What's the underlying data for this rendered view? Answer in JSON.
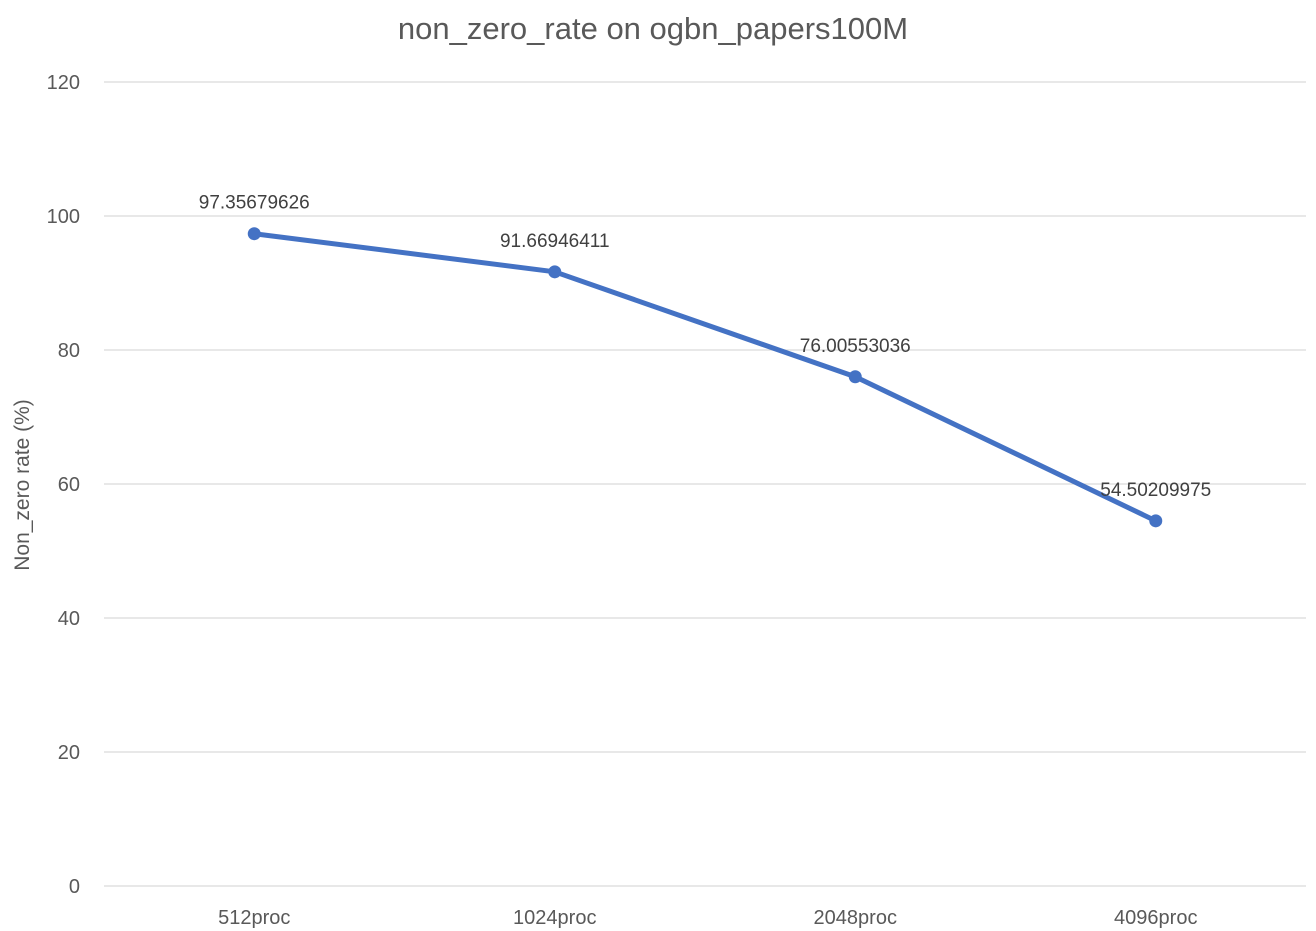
{
  "chart_data": {
    "type": "line",
    "title": "non_zero_rate on ogbn_papers100M",
    "xlabel": "",
    "ylabel": "Non_zero rate (%)",
    "categories": [
      "512proc",
      "1024proc",
      "2048proc",
      "4096proc"
    ],
    "series": [
      {
        "values": [
          97.35679626,
          91.66946411,
          76.00553036,
          54.50209975
        ],
        "data_labels": [
          "97.35679626",
          "91.66946411",
          "76.00553036",
          "54.50209975"
        ],
        "color": "#4472c4"
      }
    ],
    "ylim": [
      0,
      120
    ],
    "yticks": [
      0,
      20,
      40,
      60,
      80,
      100,
      120
    ],
    "grid": true,
    "legend": "none"
  }
}
